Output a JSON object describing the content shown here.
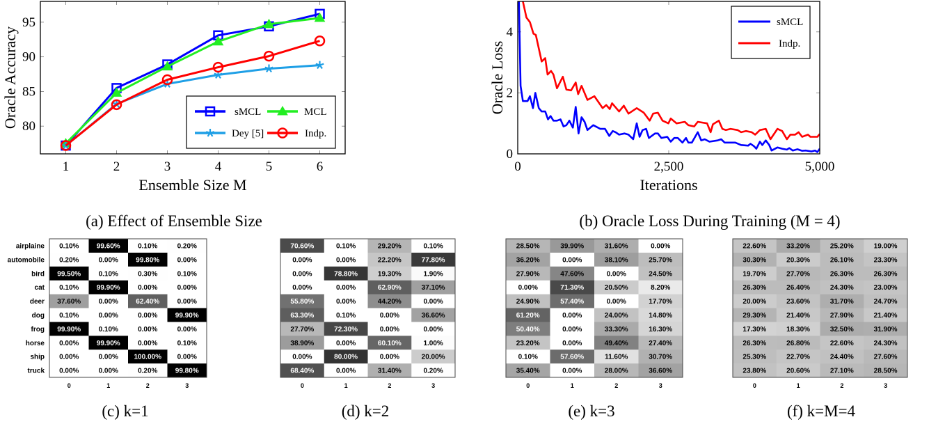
{
  "chart_data": [
    {
      "type": "line",
      "caption": "(a) Effect of Ensemble Size",
      "xlabel": "Ensemble Size M",
      "ylabel": "Oracle Accuracy",
      "x": [
        1,
        2,
        3,
        4,
        5,
        6
      ],
      "xticks": [
        "1",
        "2",
        "3",
        "4",
        "5",
        "6"
      ],
      "yticks": [
        "80",
        "85",
        "90",
        "95"
      ],
      "xlim": [
        0.5,
        6.5
      ],
      "ylim": [
        76,
        98
      ],
      "grid": false,
      "legend": "bottom-right",
      "series": [
        {
          "name": "sMCL",
          "color": "#0000ff",
          "marker": "square",
          "values": [
            77.2,
            85.5,
            88.9,
            93.1,
            94.4,
            96.2
          ]
        },
        {
          "name": "MCL",
          "color": "#22ee22",
          "marker": "triangle",
          "values": [
            77.5,
            84.8,
            88.6,
            92.2,
            94.7,
            95.6
          ]
        },
        {
          "name": "Dey [5]",
          "color": "#1e9fe6",
          "marker": "star",
          "values": [
            77.2,
            83.2,
            86.1,
            87.4,
            88.3,
            88.8
          ]
        },
        {
          "name": "Indp.",
          "color": "#ff0000",
          "marker": "circle",
          "values": [
            77.2,
            83.1,
            86.7,
            88.5,
            90.1,
            92.3
          ]
        }
      ]
    },
    {
      "type": "line",
      "caption": "(b) Oracle Loss During Training (M = 4)",
      "xlabel": "Iterations",
      "ylabel": "Oracle Loss",
      "xticks": [
        "0",
        "2,500",
        "5,000"
      ],
      "yticks": [
        "0",
        "2",
        "4"
      ],
      "xlim": [
        0,
        5000
      ],
      "ylim": [
        0,
        5
      ],
      "grid": false,
      "legend": "top-right",
      "series": [
        {
          "name": "sMCL",
          "color": "#0000ff",
          "points": [
            [
              20,
              5.0
            ],
            [
              47,
              2.23
            ],
            [
              85,
              1.73
            ],
            [
              163,
              1.73
            ],
            [
              202,
              1.89
            ],
            [
              252,
              1.5
            ],
            [
              291,
              2.0
            ],
            [
              349,
              1.5
            ],
            [
              396,
              1.39
            ],
            [
              455,
              1.39
            ],
            [
              501,
              1.13
            ],
            [
              544,
              1.24
            ],
            [
              591,
              1.09
            ],
            [
              650,
              1.09
            ],
            [
              708,
              1.13
            ],
            [
              758,
              0.9
            ],
            [
              805,
              0.94
            ],
            [
              855,
              1.09
            ],
            [
              913,
              0.86
            ],
            [
              960,
              1.54
            ],
            [
              1007,
              0.67
            ],
            [
              1056,
              1.2
            ],
            [
              1107,
              1.05
            ],
            [
              1154,
              0.78
            ],
            [
              1251,
              0.94
            ],
            [
              1368,
              0.82
            ],
            [
              1445,
              0.82
            ],
            [
              1515,
              0.59
            ],
            [
              1573,
              0.75
            ],
            [
              1620,
              0.71
            ],
            [
              1678,
              0.63
            ],
            [
              1768,
              0.67
            ],
            [
              1834,
              0.63
            ],
            [
              1911,
              0.48
            ],
            [
              1970,
              1.0
            ],
            [
              2017,
              0.56
            ],
            [
              2067,
              0.78
            ],
            [
              2125,
              0.82
            ],
            [
              2172,
              0.52
            ],
            [
              2273,
              0.67
            ],
            [
              2320,
              0.67
            ],
            [
              2378,
              0.52
            ],
            [
              2475,
              0.56
            ],
            [
              2533,
              0.4
            ],
            [
              2591,
              0.52
            ],
            [
              2650,
              0.52
            ],
            [
              2727,
              0.37
            ],
            [
              2786,
              0.52
            ],
            [
              2825,
              0.37
            ],
            [
              2883,
              0.37
            ],
            [
              2980,
              0.71
            ],
            [
              3038,
              0.44
            ],
            [
              3096,
              0.48
            ],
            [
              3174,
              0.4
            ],
            [
              3310,
              0.44
            ],
            [
              3368,
              0.48
            ],
            [
              3426,
              0.37
            ],
            [
              3601,
              0.37
            ],
            [
              3698,
              0.29
            ],
            [
              3815,
              0.27
            ],
            [
              3854,
              0.33
            ],
            [
              3912,
              0.25
            ],
            [
              3951,
              0.17
            ],
            [
              4009,
              0.4
            ],
            [
              4048,
              0.29
            ],
            [
              4106,
              0.44
            ],
            [
              4164,
              0.29
            ],
            [
              4203,
              0.11
            ],
            [
              4300,
              0.21
            ],
            [
              4378,
              0.17
            ],
            [
              4456,
              0.14
            ],
            [
              4495,
              0.19
            ],
            [
              4553,
              0.11
            ],
            [
              4631,
              0.15
            ],
            [
              4708,
              0.1
            ],
            [
              4767,
              0.11
            ],
            [
              4864,
              0.08
            ],
            [
              4922,
              0.11
            ],
            [
              4961,
              0.06
            ],
            [
              5000,
              0.17
            ]
          ]
        },
        {
          "name": "Indp.",
          "color": "#ff0000",
          "points": [
            [
              85,
              5.0
            ],
            [
              144,
              4.47
            ],
            [
              202,
              4.32
            ],
            [
              260,
              3.94
            ],
            [
              300,
              3.9
            ],
            [
              396,
              3.03
            ],
            [
              455,
              3.14
            ],
            [
              494,
              2.6
            ],
            [
              552,
              2.72
            ],
            [
              591,
              2.6
            ],
            [
              650,
              2.15
            ],
            [
              747,
              2.53
            ],
            [
              805,
              2.11
            ],
            [
              882,
              2.08
            ],
            [
              960,
              2.34
            ],
            [
              1000,
              1.96
            ],
            [
              1056,
              2.23
            ],
            [
              1154,
              1.77
            ],
            [
              1270,
              1.89
            ],
            [
              1406,
              1.5
            ],
            [
              1465,
              1.6
            ],
            [
              1523,
              1.47
            ],
            [
              1562,
              1.66
            ],
            [
              1678,
              1.39
            ],
            [
              1756,
              1.58
            ],
            [
              1834,
              1.32
            ],
            [
              1970,
              1.5
            ],
            [
              2086,
              1.35
            ],
            [
              2184,
              1.09
            ],
            [
              2242,
              1.32
            ],
            [
              2320,
              1.35
            ],
            [
              2397,
              1.09
            ],
            [
              2494,
              1.0
            ],
            [
              2533,
              1.16
            ],
            [
              2630,
              1.0
            ],
            [
              2766,
              1.05
            ],
            [
              2825,
              0.94
            ],
            [
              2922,
              0.9
            ],
            [
              2980,
              1.05
            ],
            [
              3135,
              1.0
            ],
            [
              3193,
              0.71
            ],
            [
              3232,
              0.97
            ],
            [
              3329,
              1.09
            ],
            [
              3388,
              0.82
            ],
            [
              3446,
              0.78
            ],
            [
              3523,
              0.82
            ],
            [
              3640,
              0.78
            ],
            [
              3698,
              0.71
            ],
            [
              3776,
              0.75
            ],
            [
              3873,
              0.71
            ],
            [
              3931,
              0.63
            ],
            [
              4009,
              0.78
            ],
            [
              4106,
              0.82
            ],
            [
              4184,
              0.48
            ],
            [
              4300,
              0.82
            ],
            [
              4378,
              0.75
            ],
            [
              4456,
              0.48
            ],
            [
              4514,
              0.63
            ],
            [
              4592,
              0.63
            ],
            [
              4650,
              0.71
            ],
            [
              4708,
              0.56
            ],
            [
              4806,
              0.63
            ],
            [
              4845,
              0.56
            ],
            [
              4961,
              0.56
            ],
            [
              5000,
              0.65
            ]
          ]
        }
      ]
    },
    {
      "type": "heatmap",
      "caption": "(c) k=1",
      "rows": [
        "airplaine",
        "automobile",
        "bird",
        "cat",
        "deer",
        "dog",
        "frog",
        "horse",
        "ship",
        "truck"
      ],
      "cols": [
        "0",
        "1",
        "2",
        "3"
      ],
      "values": [
        [
          "0.10%",
          "99.60%",
          "0.10%",
          "0.20%"
        ],
        [
          "0.20%",
          "0.00%",
          "99.80%",
          "0.00%"
        ],
        [
          "99.50%",
          "0.10%",
          "0.30%",
          "0.10%"
        ],
        [
          "0.10%",
          "99.90%",
          "0.00%",
          "0.00%"
        ],
        [
          "37.60%",
          "0.00%",
          "62.40%",
          "0.00%"
        ],
        [
          "0.10%",
          "0.00%",
          "0.00%",
          "99.90%"
        ],
        [
          "99.90%",
          "0.10%",
          "0.00%",
          "0.00%"
        ],
        [
          "0.00%",
          "99.90%",
          "0.00%",
          "0.10%"
        ],
        [
          "0.00%",
          "0.00%",
          "100.00%",
          "0.00%"
        ],
        [
          "0.00%",
          "0.00%",
          "0.20%",
          "99.80%"
        ]
      ]
    },
    {
      "type": "heatmap",
      "caption": "(d) k=2",
      "cols": [
        "0",
        "1",
        "2",
        "3"
      ],
      "values": [
        [
          "70.60%",
          "0.10%",
          "29.20%",
          "0.10%"
        ],
        [
          "0.00%",
          "0.00%",
          "22.20%",
          "77.80%"
        ],
        [
          "0.00%",
          "78.80%",
          "19.30%",
          "1.90%"
        ],
        [
          "0.00%",
          "0.00%",
          "62.90%",
          "37.10%"
        ],
        [
          "55.80%",
          "0.00%",
          "44.20%",
          "0.00%"
        ],
        [
          "63.30%",
          "0.10%",
          "0.00%",
          "36.60%"
        ],
        [
          "27.70%",
          "72.30%",
          "0.00%",
          "0.00%"
        ],
        [
          "38.90%",
          "0.00%",
          "60.10%",
          "1.00%"
        ],
        [
          "0.00%",
          "80.00%",
          "0.00%",
          "20.00%"
        ],
        [
          "68.40%",
          "0.00%",
          "31.40%",
          "0.20%"
        ]
      ]
    },
    {
      "type": "heatmap",
      "caption": "(e) k=3",
      "cols": [
        "0",
        "1",
        "2",
        "3"
      ],
      "values": [
        [
          "28.50%",
          "39.90%",
          "31.60%",
          "0.00%"
        ],
        [
          "36.20%",
          "0.00%",
          "38.10%",
          "25.70%"
        ],
        [
          "27.90%",
          "47.60%",
          "0.00%",
          "24.50%"
        ],
        [
          "0.00%",
          "71.30%",
          "20.50%",
          "8.20%"
        ],
        [
          "24.90%",
          "57.40%",
          "0.00%",
          "17.70%"
        ],
        [
          "61.20%",
          "0.00%",
          "24.00%",
          "14.80%"
        ],
        [
          "50.40%",
          "0.00%",
          "33.30%",
          "16.30%"
        ],
        [
          "23.20%",
          "0.00%",
          "49.40%",
          "27.40%"
        ],
        [
          "0.10%",
          "57.60%",
          "11.60%",
          "30.70%"
        ],
        [
          "35.40%",
          "0.00%",
          "28.00%",
          "36.60%"
        ]
      ]
    },
    {
      "type": "heatmap",
      "caption": "(f) k=M=4",
      "cols": [
        "0",
        "1",
        "2",
        "3"
      ],
      "values": [
        [
          "22.60%",
          "33.20%",
          "25.20%",
          "19.00%"
        ],
        [
          "30.30%",
          "20.30%",
          "26.10%",
          "23.30%"
        ],
        [
          "19.70%",
          "27.70%",
          "26.30%",
          "26.30%"
        ],
        [
          "26.30%",
          "26.40%",
          "24.30%",
          "23.00%"
        ],
        [
          "20.00%",
          "23.60%",
          "31.70%",
          "24.70%"
        ],
        [
          "29.30%",
          "21.40%",
          "27.90%",
          "21.40%"
        ],
        [
          "17.30%",
          "18.30%",
          "32.50%",
          "31.90%"
        ],
        [
          "26.30%",
          "26.80%",
          "22.60%",
          "24.30%"
        ],
        [
          "25.30%",
          "22.70%",
          "24.40%",
          "27.60%"
        ],
        [
          "23.80%",
          "20.60%",
          "27.10%",
          "28.50%"
        ]
      ]
    }
  ]
}
